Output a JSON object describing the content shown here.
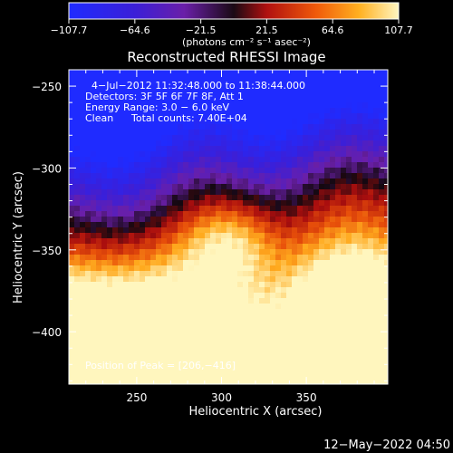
{
  "chart_data": {
    "type": "heatmap",
    "title": "Reconstructed RHESSI Image",
    "xlabel": "Heliocentric X (arcsec)",
    "ylabel": "Heliocentric Y (arcsec)",
    "xlim": [
      210,
      398
    ],
    "ylim": [
      -432,
      -240
    ],
    "x_ticks": [
      250,
      300,
      350
    ],
    "y_ticks": [
      -250,
      -300,
      -350,
      -400
    ],
    "colorbar": {
      "range": [
        -107.7,
        107.7
      ],
      "tick_values": [
        -107.7,
        -64.6,
        -21.5,
        21.5,
        64.6,
        107.7
      ],
      "tick_labels": [
        "−107.7",
        "−64.6",
        "−21.5",
        "21.5",
        "64.6",
        "107.7"
      ],
      "units": "(photons cm⁻² s⁻¹ asec⁻²)"
    },
    "annotations": [
      "4−Jul−2012 11:32:48.000 to 11:38:44.000",
      "Detectors: 3F 5F 6F 7F 8F, Att 1",
      "Energy Range: 3.0 − 6.0 keV",
      "Clean",
      "Total counts: 7.40E+04"
    ],
    "peak_label": "Position of Peak = [206,−416]",
    "peak": [
      206,
      -416
    ],
    "grid": false,
    "legend": "colorbar-top"
  },
  "footer": {
    "timestamp": "12−May−2022 04:50"
  }
}
